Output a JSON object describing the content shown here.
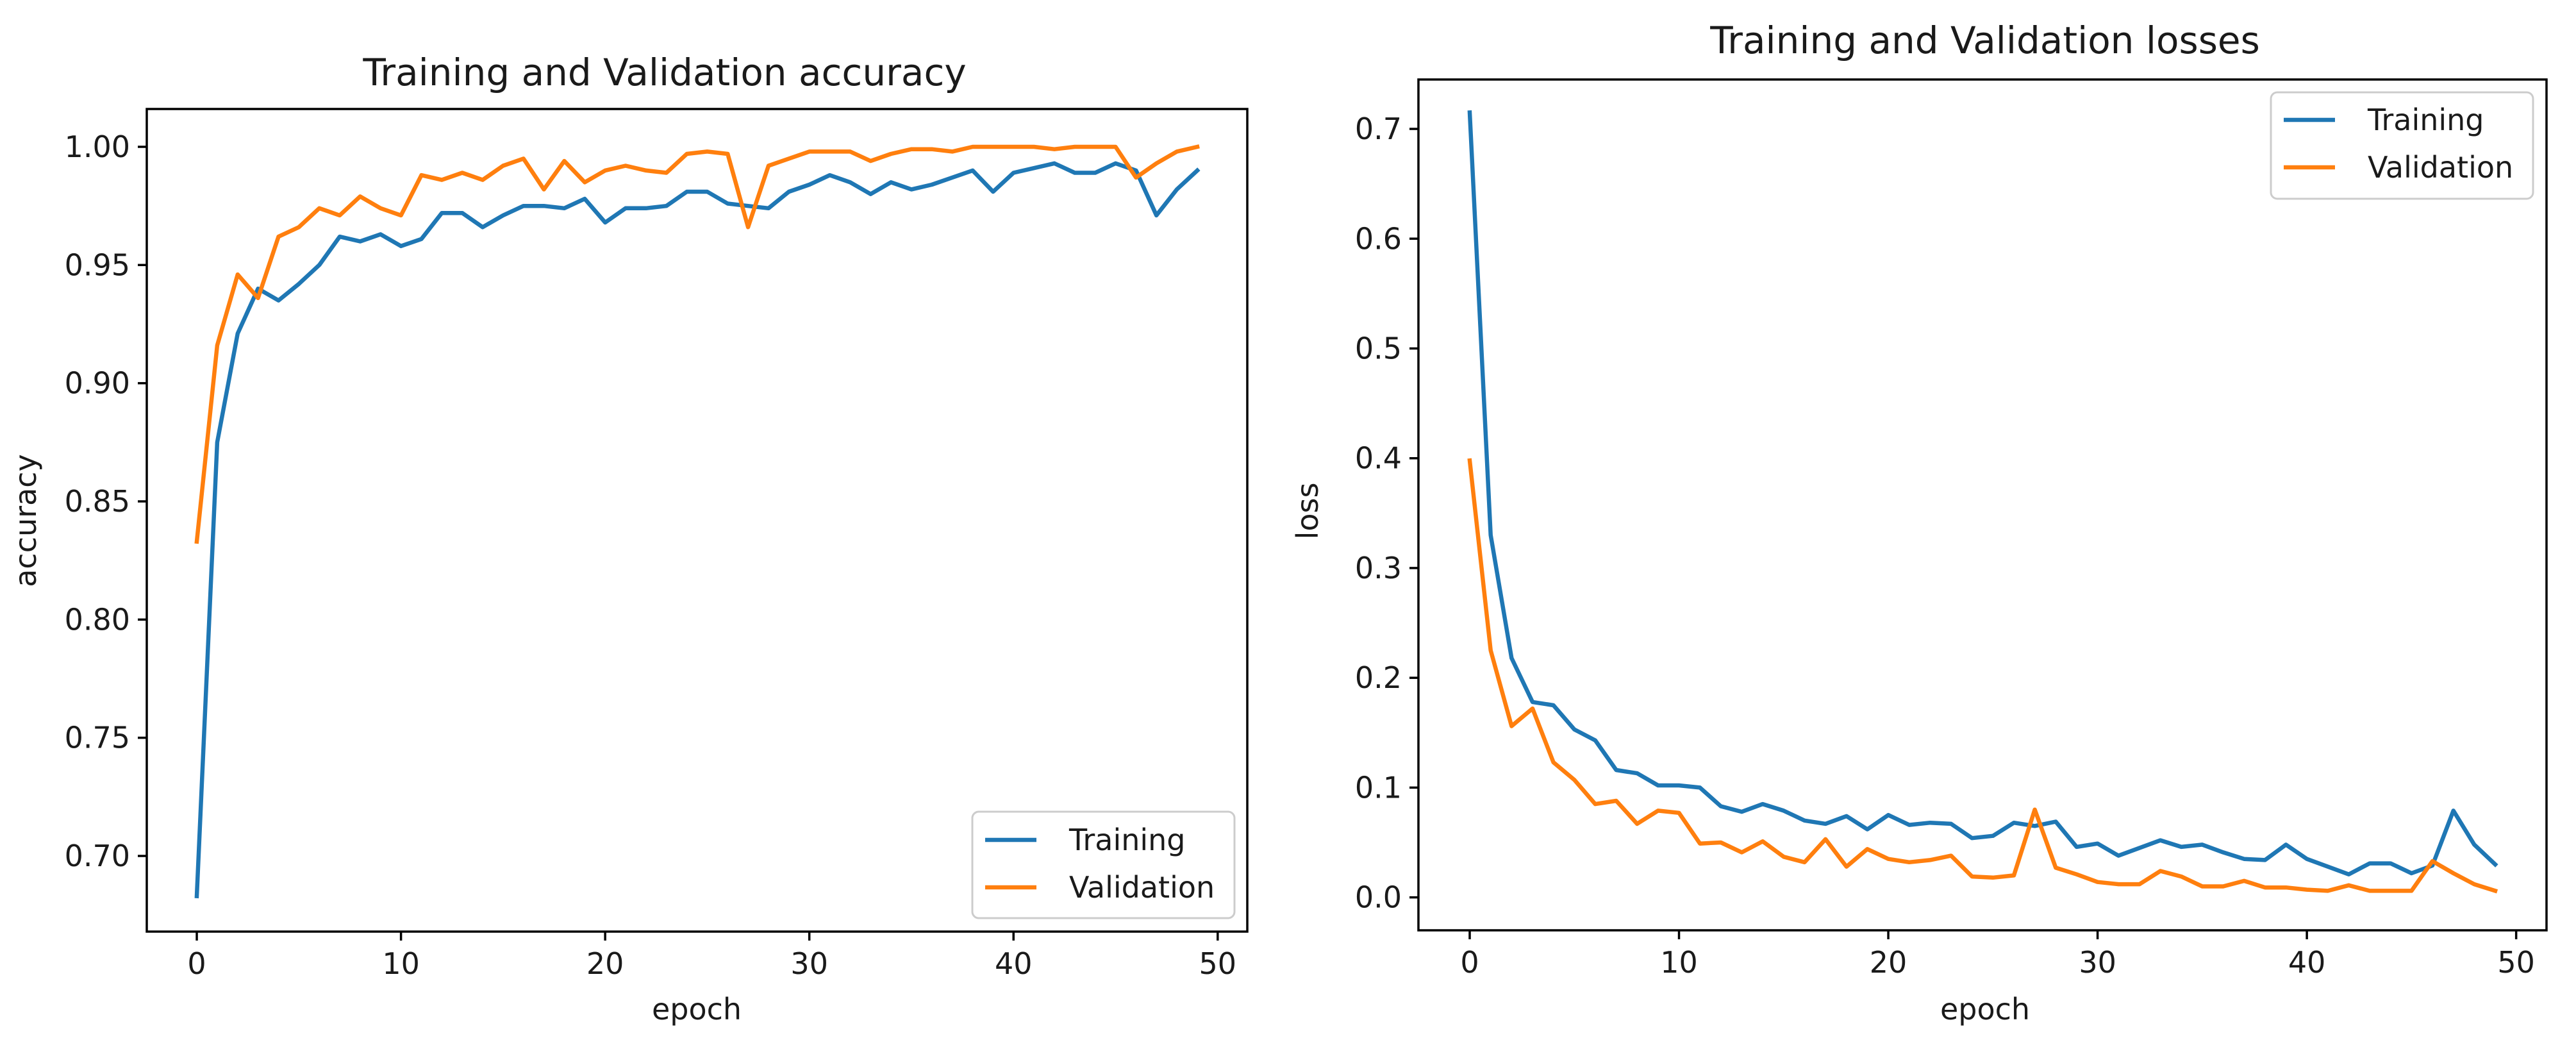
{
  "chart_data": [
    {
      "type": "line",
      "title": "Training and Validation accuracy",
      "xlabel": "epoch",
      "ylabel": "accuracy",
      "xlim": [
        -2.45,
        51.45
      ],
      "ylim": [
        0.668,
        1.016
      ],
      "xticks": [
        0,
        10,
        20,
        30,
        40,
        50
      ],
      "xtick_labels": [
        "0",
        "10",
        "20",
        "30",
        "40",
        "50"
      ],
      "yticks": [
        0.7,
        0.75,
        0.8,
        0.85,
        0.9,
        0.95,
        1.0
      ],
      "ytick_labels": [
        "0.70",
        "0.75",
        "0.80",
        "0.85",
        "0.90",
        "0.95",
        "1.00"
      ],
      "grid": false,
      "legend_position": "lower-right",
      "series": [
        {
          "name": "Training",
          "color": "#1f77b4",
          "x": [
            0,
            1,
            2,
            3,
            4,
            5,
            6,
            7,
            8,
            9,
            10,
            11,
            12,
            13,
            14,
            15,
            16,
            17,
            18,
            19,
            20,
            21,
            22,
            23,
            24,
            25,
            26,
            27,
            28,
            29,
            30,
            31,
            32,
            33,
            34,
            35,
            36,
            37,
            38,
            39,
            40,
            41,
            42,
            43,
            44,
            45,
            46,
            47,
            48,
            49
          ],
          "y": [
            0.683,
            0.875,
            0.921,
            0.94,
            0.935,
            0.942,
            0.95,
            0.962,
            0.96,
            0.963,
            0.958,
            0.961,
            0.972,
            0.972,
            0.966,
            0.971,
            0.975,
            0.975,
            0.974,
            0.978,
            0.968,
            0.974,
            0.974,
            0.975,
            0.981,
            0.981,
            0.976,
            0.975,
            0.974,
            0.981,
            0.984,
            0.988,
            0.985,
            0.98,
            0.985,
            0.982,
            0.984,
            0.987,
            0.99,
            0.981,
            0.989,
            0.991,
            0.993,
            0.989,
            0.989,
            0.993,
            0.99,
            0.971,
            0.982,
            0.99
          ]
        },
        {
          "name": "Validation",
          "color": "#ff7f0e",
          "x": [
            0,
            1,
            2,
            3,
            4,
            5,
            6,
            7,
            8,
            9,
            10,
            11,
            12,
            13,
            14,
            15,
            16,
            17,
            18,
            19,
            20,
            21,
            22,
            23,
            24,
            25,
            26,
            27,
            28,
            29,
            30,
            31,
            32,
            33,
            34,
            35,
            36,
            37,
            38,
            39,
            40,
            41,
            42,
            43,
            44,
            45,
            46,
            47,
            48,
            49
          ],
          "y": [
            0.833,
            0.916,
            0.946,
            0.936,
            0.962,
            0.966,
            0.974,
            0.971,
            0.979,
            0.974,
            0.971,
            0.988,
            0.986,
            0.989,
            0.986,
            0.992,
            0.995,
            0.982,
            0.994,
            0.985,
            0.99,
            0.992,
            0.99,
            0.989,
            0.997,
            0.998,
            0.997,
            0.966,
            0.992,
            0.995,
            0.998,
            0.998,
            0.998,
            0.994,
            0.997,
            0.999,
            0.999,
            0.998,
            1.0,
            1.0,
            1.0,
            1.0,
            0.999,
            1.0,
            1.0,
            1.0,
            0.987,
            0.993,
            0.998,
            1.0
          ]
        }
      ]
    },
    {
      "type": "line",
      "title": "Training and Validation losses",
      "xlabel": "epoch",
      "ylabel": "loss",
      "xlim": [
        -2.45,
        51.45
      ],
      "ylim": [
        -0.03,
        0.745
      ],
      "xticks": [
        0,
        10,
        20,
        30,
        40,
        50
      ],
      "xtick_labels": [
        "0",
        "10",
        "20",
        "30",
        "40",
        "50"
      ],
      "yticks": [
        0.0,
        0.1,
        0.2,
        0.3,
        0.4,
        0.5,
        0.6,
        0.7
      ],
      "ytick_labels": [
        "0.0",
        "0.1",
        "0.2",
        "0.3",
        "0.4",
        "0.5",
        "0.6",
        "0.7"
      ],
      "grid": false,
      "legend_position": "upper-right",
      "series": [
        {
          "name": "Training",
          "color": "#1f77b4",
          "x": [
            0,
            1,
            2,
            3,
            4,
            5,
            6,
            7,
            8,
            9,
            10,
            11,
            12,
            13,
            14,
            15,
            16,
            17,
            18,
            19,
            20,
            21,
            22,
            23,
            24,
            25,
            26,
            27,
            28,
            29,
            30,
            31,
            32,
            33,
            34,
            35,
            36,
            37,
            38,
            39,
            40,
            41,
            42,
            43,
            44,
            45,
            46,
            47,
            48,
            49
          ],
          "y": [
            0.715,
            0.33,
            0.218,
            0.178,
            0.175,
            0.153,
            0.143,
            0.116,
            0.113,
            0.102,
            0.102,
            0.1,
            0.083,
            0.078,
            0.085,
            0.079,
            0.07,
            0.067,
            0.074,
            0.062,
            0.075,
            0.066,
            0.068,
            0.067,
            0.054,
            0.056,
            0.068,
            0.065,
            0.069,
            0.046,
            0.049,
            0.038,
            0.045,
            0.052,
            0.046,
            0.048,
            0.041,
            0.035,
            0.034,
            0.048,
            0.035,
            0.028,
            0.021,
            0.031,
            0.031,
            0.022,
            0.029,
            0.079,
            0.048,
            0.03
          ]
        },
        {
          "name": "Validation",
          "color": "#ff7f0e",
          "x": [
            0,
            1,
            2,
            3,
            4,
            5,
            6,
            7,
            8,
            9,
            10,
            11,
            12,
            13,
            14,
            15,
            16,
            17,
            18,
            19,
            20,
            21,
            22,
            23,
            24,
            25,
            26,
            27,
            28,
            29,
            30,
            31,
            32,
            33,
            34,
            35,
            36,
            37,
            38,
            39,
            40,
            41,
            42,
            43,
            44,
            45,
            46,
            47,
            48,
            49
          ],
          "y": [
            0.398,
            0.225,
            0.156,
            0.172,
            0.123,
            0.107,
            0.085,
            0.088,
            0.067,
            0.079,
            0.077,
            0.049,
            0.05,
            0.041,
            0.051,
            0.037,
            0.032,
            0.053,
            0.028,
            0.044,
            0.035,
            0.032,
            0.034,
            0.038,
            0.019,
            0.018,
            0.02,
            0.08,
            0.027,
            0.021,
            0.014,
            0.012,
            0.012,
            0.024,
            0.019,
            0.01,
            0.01,
            0.015,
            0.009,
            0.009,
            0.007,
            0.006,
            0.011,
            0.006,
            0.006,
            0.006,
            0.033,
            0.022,
            0.012,
            0.006
          ]
        }
      ]
    }
  ]
}
